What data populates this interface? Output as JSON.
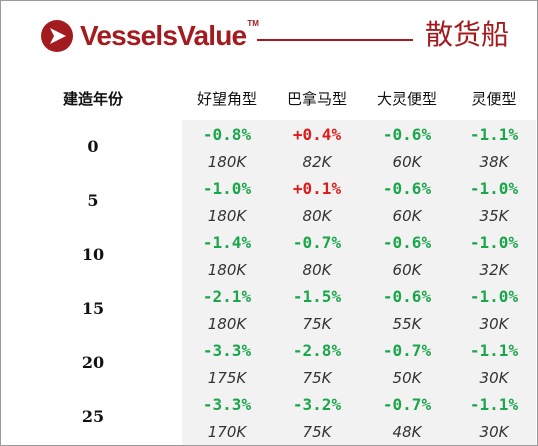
{
  "brand": {
    "name": "VesselsValue",
    "tm": "TM",
    "category": "散货船"
  },
  "colors": {
    "brand": "#a31b1e",
    "negative": "#1aa64b",
    "positive": "#e01b1b"
  },
  "headers": [
    "建造年份",
    "好望角型",
    "巴拿马型",
    "大灵便型",
    "灵便型"
  ],
  "rows": [
    {
      "age": "0",
      "cells": [
        {
          "pct": "-0.8%",
          "val": "180K",
          "sign": "neg"
        },
        {
          "pct": "+0.4%",
          "val": "82K",
          "sign": "pos"
        },
        {
          "pct": "-0.6%",
          "val": "60K",
          "sign": "neg"
        },
        {
          "pct": "-1.1%",
          "val": "38K",
          "sign": "neg"
        }
      ]
    },
    {
      "age": "5",
      "cells": [
        {
          "pct": "-1.0%",
          "val": "180K",
          "sign": "neg"
        },
        {
          "pct": "+0.1%",
          "val": "80K",
          "sign": "pos"
        },
        {
          "pct": "-0.6%",
          "val": "60K",
          "sign": "neg"
        },
        {
          "pct": "-1.0%",
          "val": "35K",
          "sign": "neg"
        }
      ]
    },
    {
      "age": "10",
      "cells": [
        {
          "pct": "-1.4%",
          "val": "180K",
          "sign": "neg"
        },
        {
          "pct": "-0.7%",
          "val": "80K",
          "sign": "neg"
        },
        {
          "pct": "-0.6%",
          "val": "60K",
          "sign": "neg"
        },
        {
          "pct": "-1.0%",
          "val": "32K",
          "sign": "neg"
        }
      ]
    },
    {
      "age": "15",
      "cells": [
        {
          "pct": "-2.1%",
          "val": "180K",
          "sign": "neg"
        },
        {
          "pct": "-1.5%",
          "val": "75K",
          "sign": "neg"
        },
        {
          "pct": "-0.6%",
          "val": "55K",
          "sign": "neg"
        },
        {
          "pct": "-1.0%",
          "val": "30K",
          "sign": "neg"
        }
      ]
    },
    {
      "age": "20",
      "cells": [
        {
          "pct": "-3.3%",
          "val": "175K",
          "sign": "neg"
        },
        {
          "pct": "-2.8%",
          "val": "75K",
          "sign": "neg"
        },
        {
          "pct": "-0.7%",
          "val": "50K",
          "sign": "neg"
        },
        {
          "pct": "-1.1%",
          "val": "30K",
          "sign": "neg"
        }
      ]
    },
    {
      "age": "25",
      "cells": [
        {
          "pct": "-3.3%",
          "val": "170K",
          "sign": "neg"
        },
        {
          "pct": "-3.2%",
          "val": "75K",
          "sign": "neg"
        },
        {
          "pct": "-0.7%",
          "val": "48K",
          "sign": "neg"
        },
        {
          "pct": "-1.1%",
          "val": "30K",
          "sign": "neg"
        }
      ]
    }
  ]
}
